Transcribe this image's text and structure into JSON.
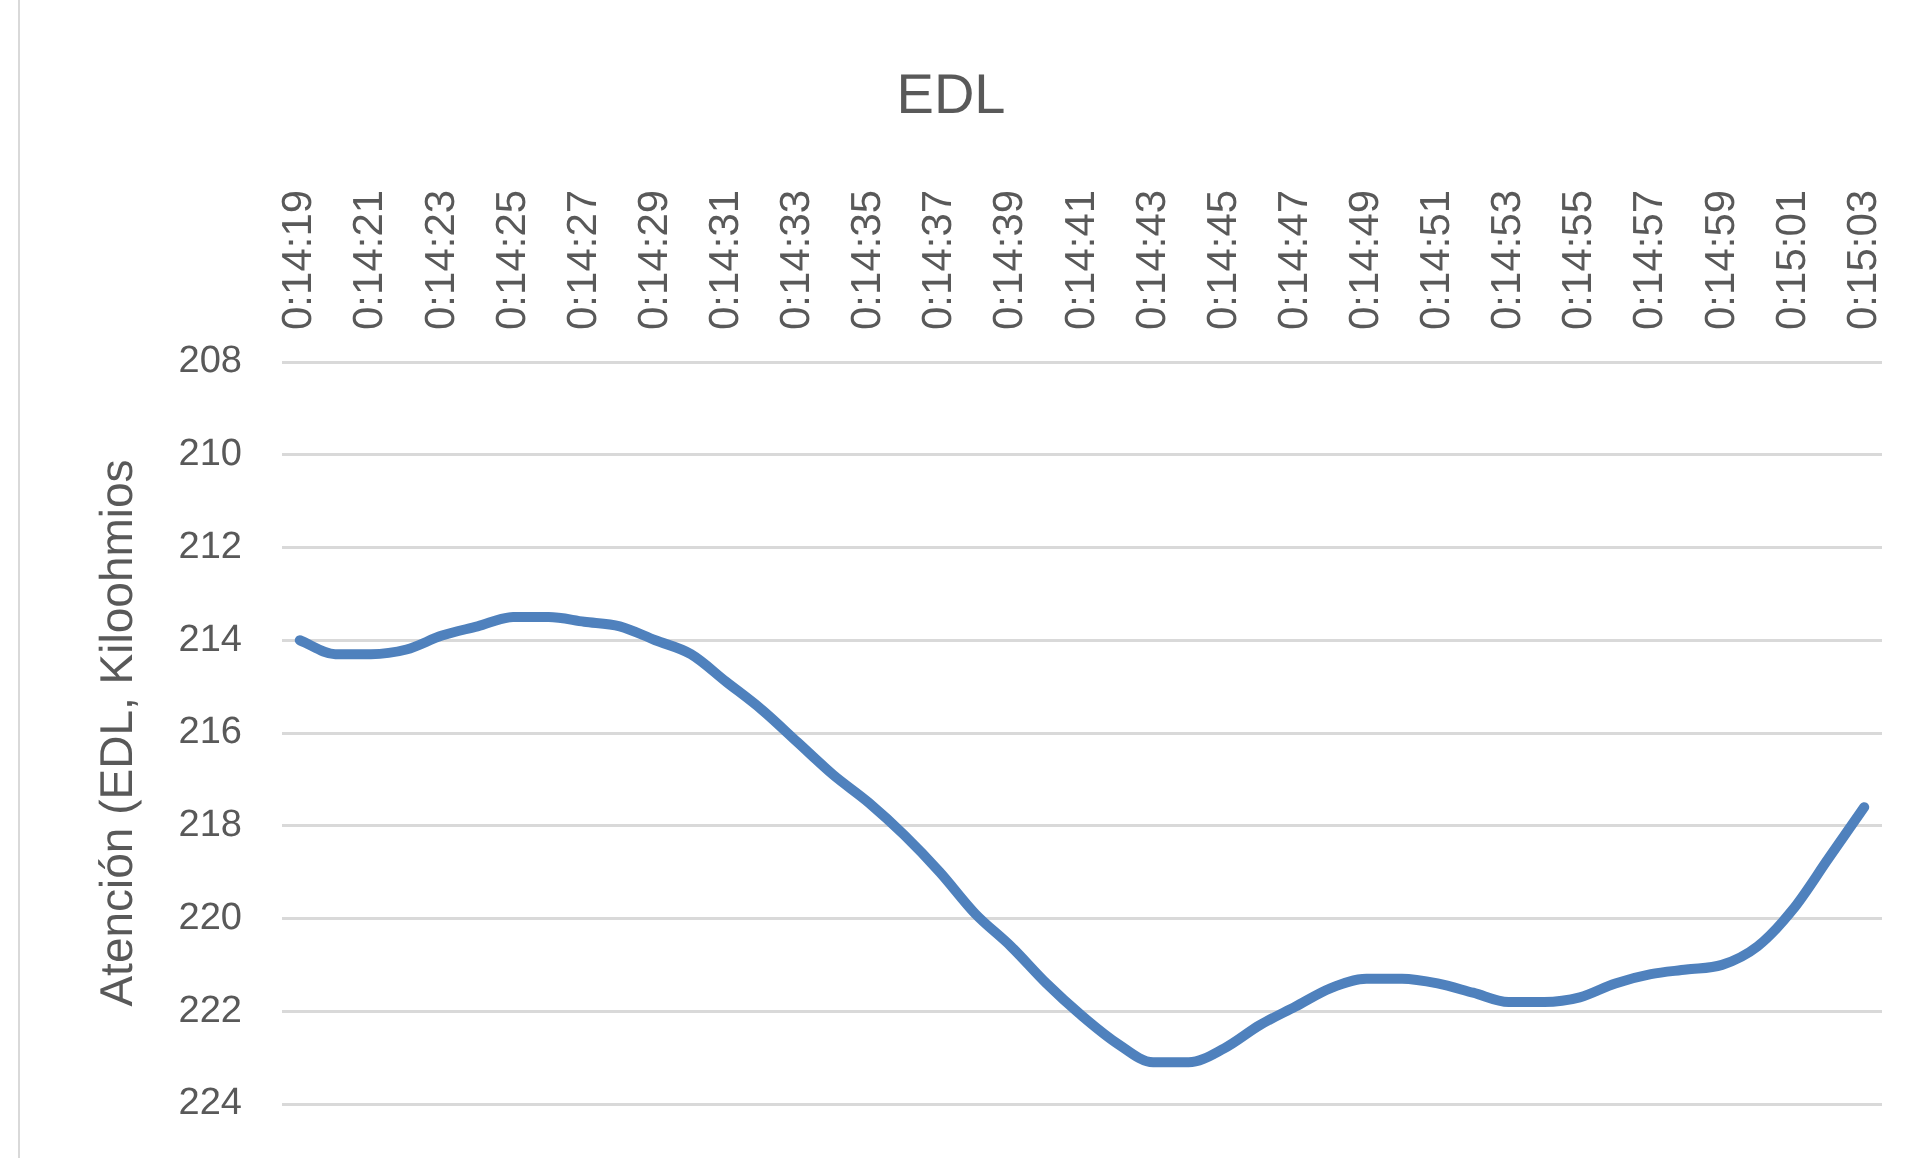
{
  "chart_data": {
    "type": "line",
    "title": "EDL",
    "ylabel": "Atención (EDL, Kiloohmios",
    "categories": [
      "0:14:19",
      null,
      "0:14:21",
      null,
      "0:14:23",
      null,
      "0:14:25",
      null,
      "0:14:27",
      null,
      "0:14:29",
      null,
      "0:14:31",
      null,
      "0:14:33",
      null,
      "0:14:35",
      null,
      "0:14:37",
      null,
      "0:14:39",
      null,
      "0:14:41",
      null,
      "0:14:43",
      null,
      "0:14:45",
      null,
      "0:14:47",
      null,
      "0:14:49",
      null,
      "0:14:51",
      null,
      "0:14:53",
      null,
      "0:14:55",
      null,
      "0:14:57",
      null,
      "0:14:59",
      null,
      "0:15:01",
      null,
      "0:15:03"
    ],
    "series": [
      {
        "color": "#4f81bd",
        "values": [
          214.0,
          214.3,
          214.3,
          214.2,
          213.9,
          213.7,
          213.5,
          213.5,
          213.6,
          213.7,
          214.0,
          214.3,
          214.9,
          215.5,
          216.2,
          216.9,
          217.5,
          218.2,
          219.0,
          219.9,
          220.6,
          221.4,
          222.1,
          222.7,
          223.1,
          223.1,
          222.8,
          222.3,
          221.9,
          221.5,
          221.3,
          221.3,
          221.4,
          221.6,
          221.8,
          221.8,
          221.7,
          221.4,
          221.2,
          221.1,
          221.0,
          220.6,
          219.8,
          218.7,
          217.6
        ]
      }
    ],
    "ylim": [
      224,
      208
    ],
    "yticks": [
      208,
      210,
      212,
      214,
      216,
      218,
      220,
      222,
      224
    ],
    "grid": "y",
    "marker": "none",
    "line_style": "solid"
  }
}
